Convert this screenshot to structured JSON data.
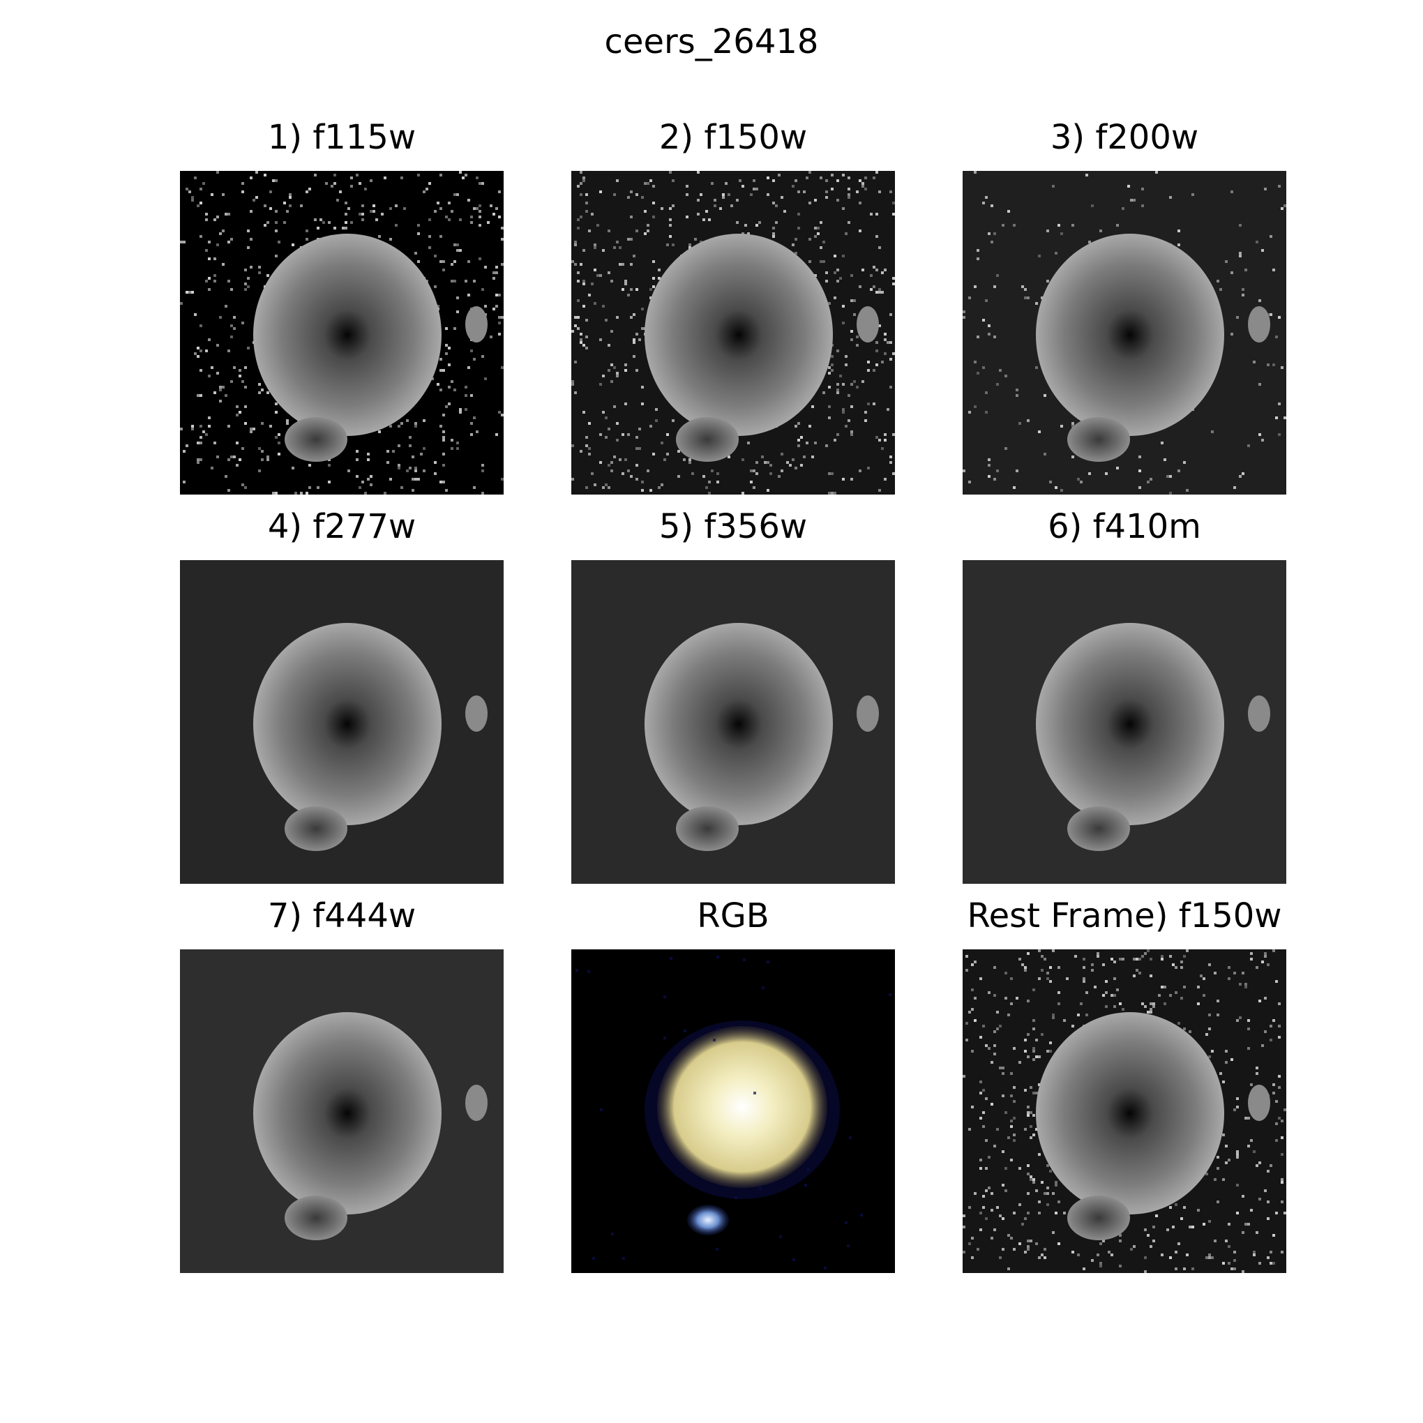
{
  "figure": {
    "title": "ceers_26418"
  },
  "panels": [
    {
      "title": "1) f115w",
      "kind": "grayscale",
      "background": "#000000",
      "noise": "high"
    },
    {
      "title": "2) f150w",
      "kind": "grayscale",
      "background": "#151515",
      "noise": "high"
    },
    {
      "title": "3) f200w",
      "kind": "grayscale",
      "background": "#1f1f1f",
      "noise": "medium"
    },
    {
      "title": "4) f277w",
      "kind": "grayscale",
      "background": "#262626",
      "noise": "none"
    },
    {
      "title": "5) f356w",
      "kind": "grayscale",
      "background": "#2a2a2a",
      "noise": "none"
    },
    {
      "title": "6) f410m",
      "kind": "grayscale",
      "background": "#2c2c2c",
      "noise": "none"
    },
    {
      "title": "7) f444w",
      "kind": "grayscale",
      "background": "#2e2e2e",
      "noise": "none"
    },
    {
      "title": "RGB",
      "kind": "rgb",
      "background": "#000000",
      "noise": "none"
    },
    {
      "title": "Rest Frame) f150w",
      "kind": "grayscale",
      "background": "#151515",
      "noise": "high"
    }
  ]
}
